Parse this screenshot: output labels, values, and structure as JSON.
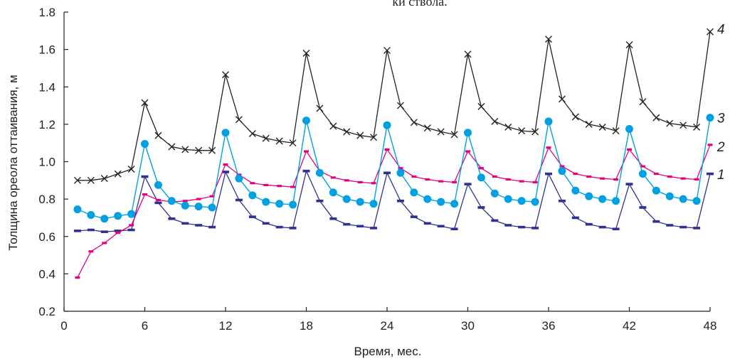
{
  "chart_data": {
    "type": "line",
    "title": "",
    "top_text": "ки ствола.",
    "xlabel": "Время, мес.",
    "ylabel": "Толщина ореола оттаивания, м",
    "xlim": [
      0,
      48
    ],
    "ylim": [
      0.2,
      1.8
    ],
    "xticks": [
      0,
      6,
      12,
      18,
      24,
      30,
      36,
      42,
      48
    ],
    "yticks": [
      0.2,
      0.4,
      0.6,
      0.8,
      1.0,
      1.2,
      1.4,
      1.6,
      1.8
    ],
    "ytick_labels": [
      "0.2",
      "0.4",
      "0.6",
      "0.8",
      "1.0",
      "1.2",
      "1.4",
      "1.6",
      "1.8"
    ],
    "grid": false,
    "x": [
      1,
      2,
      3,
      4,
      5,
      6,
      7,
      8,
      9,
      10,
      11,
      12,
      13,
      14,
      15,
      16,
      17,
      18,
      19,
      20,
      21,
      22,
      23,
      24,
      25,
      26,
      27,
      28,
      29,
      30,
      31,
      32,
      33,
      34,
      35,
      36,
      37,
      38,
      39,
      40,
      41,
      42,
      43,
      44,
      45,
      46,
      47,
      48
    ],
    "series": [
      {
        "name": "1",
        "color": "#2e3192",
        "marker": "dash",
        "values": [
          0.63,
          0.635,
          0.625,
          0.63,
          0.635,
          0.92,
          0.78,
          0.695,
          0.67,
          0.66,
          0.65,
          0.945,
          0.795,
          0.705,
          0.67,
          0.65,
          0.645,
          0.95,
          0.79,
          0.695,
          0.665,
          0.655,
          0.645,
          0.94,
          0.79,
          0.705,
          0.67,
          0.655,
          0.64,
          0.88,
          0.755,
          0.685,
          0.66,
          0.65,
          0.645,
          0.935,
          0.79,
          0.7,
          0.665,
          0.65,
          0.64,
          0.88,
          0.755,
          0.68,
          0.66,
          0.65,
          0.645,
          0.935
        ]
      },
      {
        "name": "2",
        "color": "#e6007e",
        "marker": "dash",
        "values": [
          0.38,
          0.52,
          0.565,
          0.62,
          0.66,
          0.825,
          0.795,
          0.785,
          0.79,
          0.8,
          0.815,
          0.985,
          0.93,
          0.885,
          0.875,
          0.87,
          0.865,
          1.055,
          0.95,
          0.915,
          0.9,
          0.89,
          0.885,
          1.065,
          0.965,
          0.92,
          0.905,
          0.895,
          0.89,
          1.055,
          0.965,
          0.92,
          0.905,
          0.895,
          0.89,
          1.075,
          0.975,
          0.935,
          0.92,
          0.91,
          0.905,
          1.065,
          0.975,
          0.935,
          0.92,
          0.91,
          0.905,
          1.09
        ]
      },
      {
        "name": "3",
        "color": "#00a0e3",
        "marker": "circle",
        "values": [
          0.745,
          0.715,
          0.695,
          0.71,
          0.72,
          1.095,
          0.875,
          0.79,
          0.765,
          0.76,
          0.755,
          1.155,
          0.91,
          0.82,
          0.785,
          0.775,
          0.77,
          1.22,
          0.94,
          0.835,
          0.8,
          0.785,
          0.775,
          1.195,
          0.94,
          0.835,
          0.8,
          0.785,
          0.775,
          1.155,
          0.915,
          0.83,
          0.8,
          0.79,
          0.785,
          1.215,
          0.95,
          0.845,
          0.815,
          0.8,
          0.79,
          1.175,
          0.935,
          0.845,
          0.815,
          0.8,
          0.79,
          1.235
        ]
      },
      {
        "name": "4",
        "color": "#222222",
        "marker": "x",
        "values": [
          0.9,
          0.9,
          0.91,
          0.935,
          0.96,
          1.315,
          1.14,
          1.08,
          1.065,
          1.06,
          1.06,
          1.465,
          1.225,
          1.15,
          1.125,
          1.11,
          1.1,
          1.58,
          1.285,
          1.19,
          1.16,
          1.14,
          1.13,
          1.595,
          1.3,
          1.21,
          1.18,
          1.16,
          1.145,
          1.575,
          1.295,
          1.215,
          1.185,
          1.165,
          1.16,
          1.655,
          1.335,
          1.24,
          1.2,
          1.185,
          1.165,
          1.625,
          1.32,
          1.235,
          1.205,
          1.195,
          1.185,
          1.695
        ]
      }
    ]
  }
}
